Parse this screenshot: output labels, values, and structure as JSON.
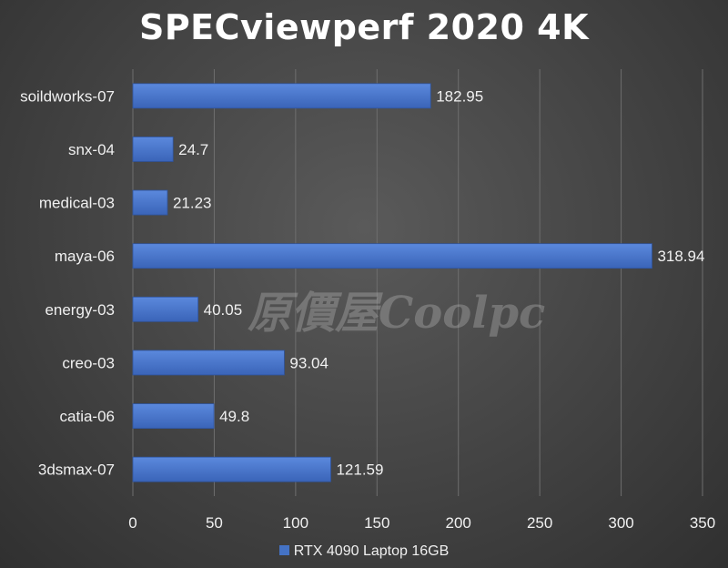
{
  "chart_data": {
    "type": "bar",
    "orientation": "horizontal",
    "title": "SPECviewperf 2020 4K",
    "categories": [
      "soildworks-07",
      "snx-04",
      "medical-03",
      "maya-06",
      "energy-03",
      "creo-03",
      "catia-06",
      "3dsmax-07"
    ],
    "series": [
      {
        "name": "RTX 4090 Laptop 16GB",
        "values": [
          182.95,
          24.7,
          21.23,
          318.94,
          40.05,
          93.04,
          49.8,
          121.59
        ],
        "color": "#4472c4"
      }
    ],
    "xlim": [
      0,
      350
    ],
    "xticks": [
      0,
      50,
      100,
      150,
      200,
      250,
      300,
      350
    ],
    "grid": true,
    "legend": "bottom",
    "watermark": "原價屋Coolpc"
  }
}
